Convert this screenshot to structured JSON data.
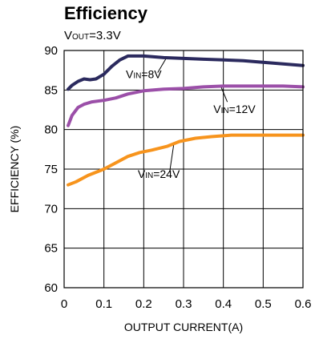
{
  "chart_data": {
    "type": "line",
    "title": "Efficiency",
    "subtitle": {
      "main": "V",
      "sub": "OUT",
      "rest": "=3.3V"
    },
    "xlabel": "OUTPUT CURRENT(A)",
    "ylabel": "EFFICIENCY (%)",
    "xlim": [
      0,
      0.6
    ],
    "ylim": [
      60,
      90
    ],
    "xticks": [
      "0",
      "0.1",
      "0.2",
      "0.3",
      "0.4",
      "0.5",
      "0.6"
    ],
    "yticks": [
      "60",
      "65",
      "70",
      "75",
      "80",
      "85",
      "90"
    ],
    "grid": true,
    "series": [
      {
        "name": "VIN=8V",
        "label": {
          "main": "V",
          "sub": "IN",
          "rest": "=8V"
        },
        "color": "#2b2a5e",
        "x": [
          0.01,
          0.02,
          0.035,
          0.05,
          0.065,
          0.08,
          0.1,
          0.12,
          0.14,
          0.16,
          0.18,
          0.2,
          0.25,
          0.3,
          0.35,
          0.4,
          0.45,
          0.5,
          0.55,
          0.6
        ],
        "y": [
          85.1,
          85.6,
          86.1,
          86.4,
          86.3,
          86.4,
          87.0,
          88.0,
          88.8,
          89.3,
          89.3,
          89.3,
          89.1,
          89.0,
          88.9,
          88.8,
          88.7,
          88.5,
          88.3,
          88.1
        ]
      },
      {
        "name": "VIN=12V",
        "label": {
          "main": "V",
          "sub": "IN",
          "rest": "=12V"
        },
        "color": "#9b4fa8",
        "x": [
          0.01,
          0.02,
          0.035,
          0.05,
          0.07,
          0.1,
          0.13,
          0.16,
          0.2,
          0.25,
          0.3,
          0.35,
          0.4,
          0.45,
          0.5,
          0.55,
          0.6
        ],
        "y": [
          80.5,
          81.8,
          82.8,
          83.2,
          83.5,
          83.7,
          84.0,
          84.5,
          84.9,
          85.1,
          85.2,
          85.4,
          85.5,
          85.5,
          85.5,
          85.5,
          85.4
        ]
      },
      {
        "name": "VIN=24V",
        "label": {
          "main": "V",
          "sub": "IN",
          "rest": "=24V"
        },
        "color": "#f7941d",
        "x": [
          0.01,
          0.03,
          0.06,
          0.1,
          0.13,
          0.16,
          0.19,
          0.22,
          0.26,
          0.29,
          0.33,
          0.37,
          0.42,
          0.47,
          0.52,
          0.56,
          0.6
        ],
        "y": [
          73.0,
          73.4,
          74.2,
          75.0,
          75.8,
          76.6,
          77.1,
          77.4,
          77.9,
          78.5,
          78.9,
          79.1,
          79.3,
          79.3,
          79.3,
          79.3,
          79.3
        ]
      }
    ]
  }
}
